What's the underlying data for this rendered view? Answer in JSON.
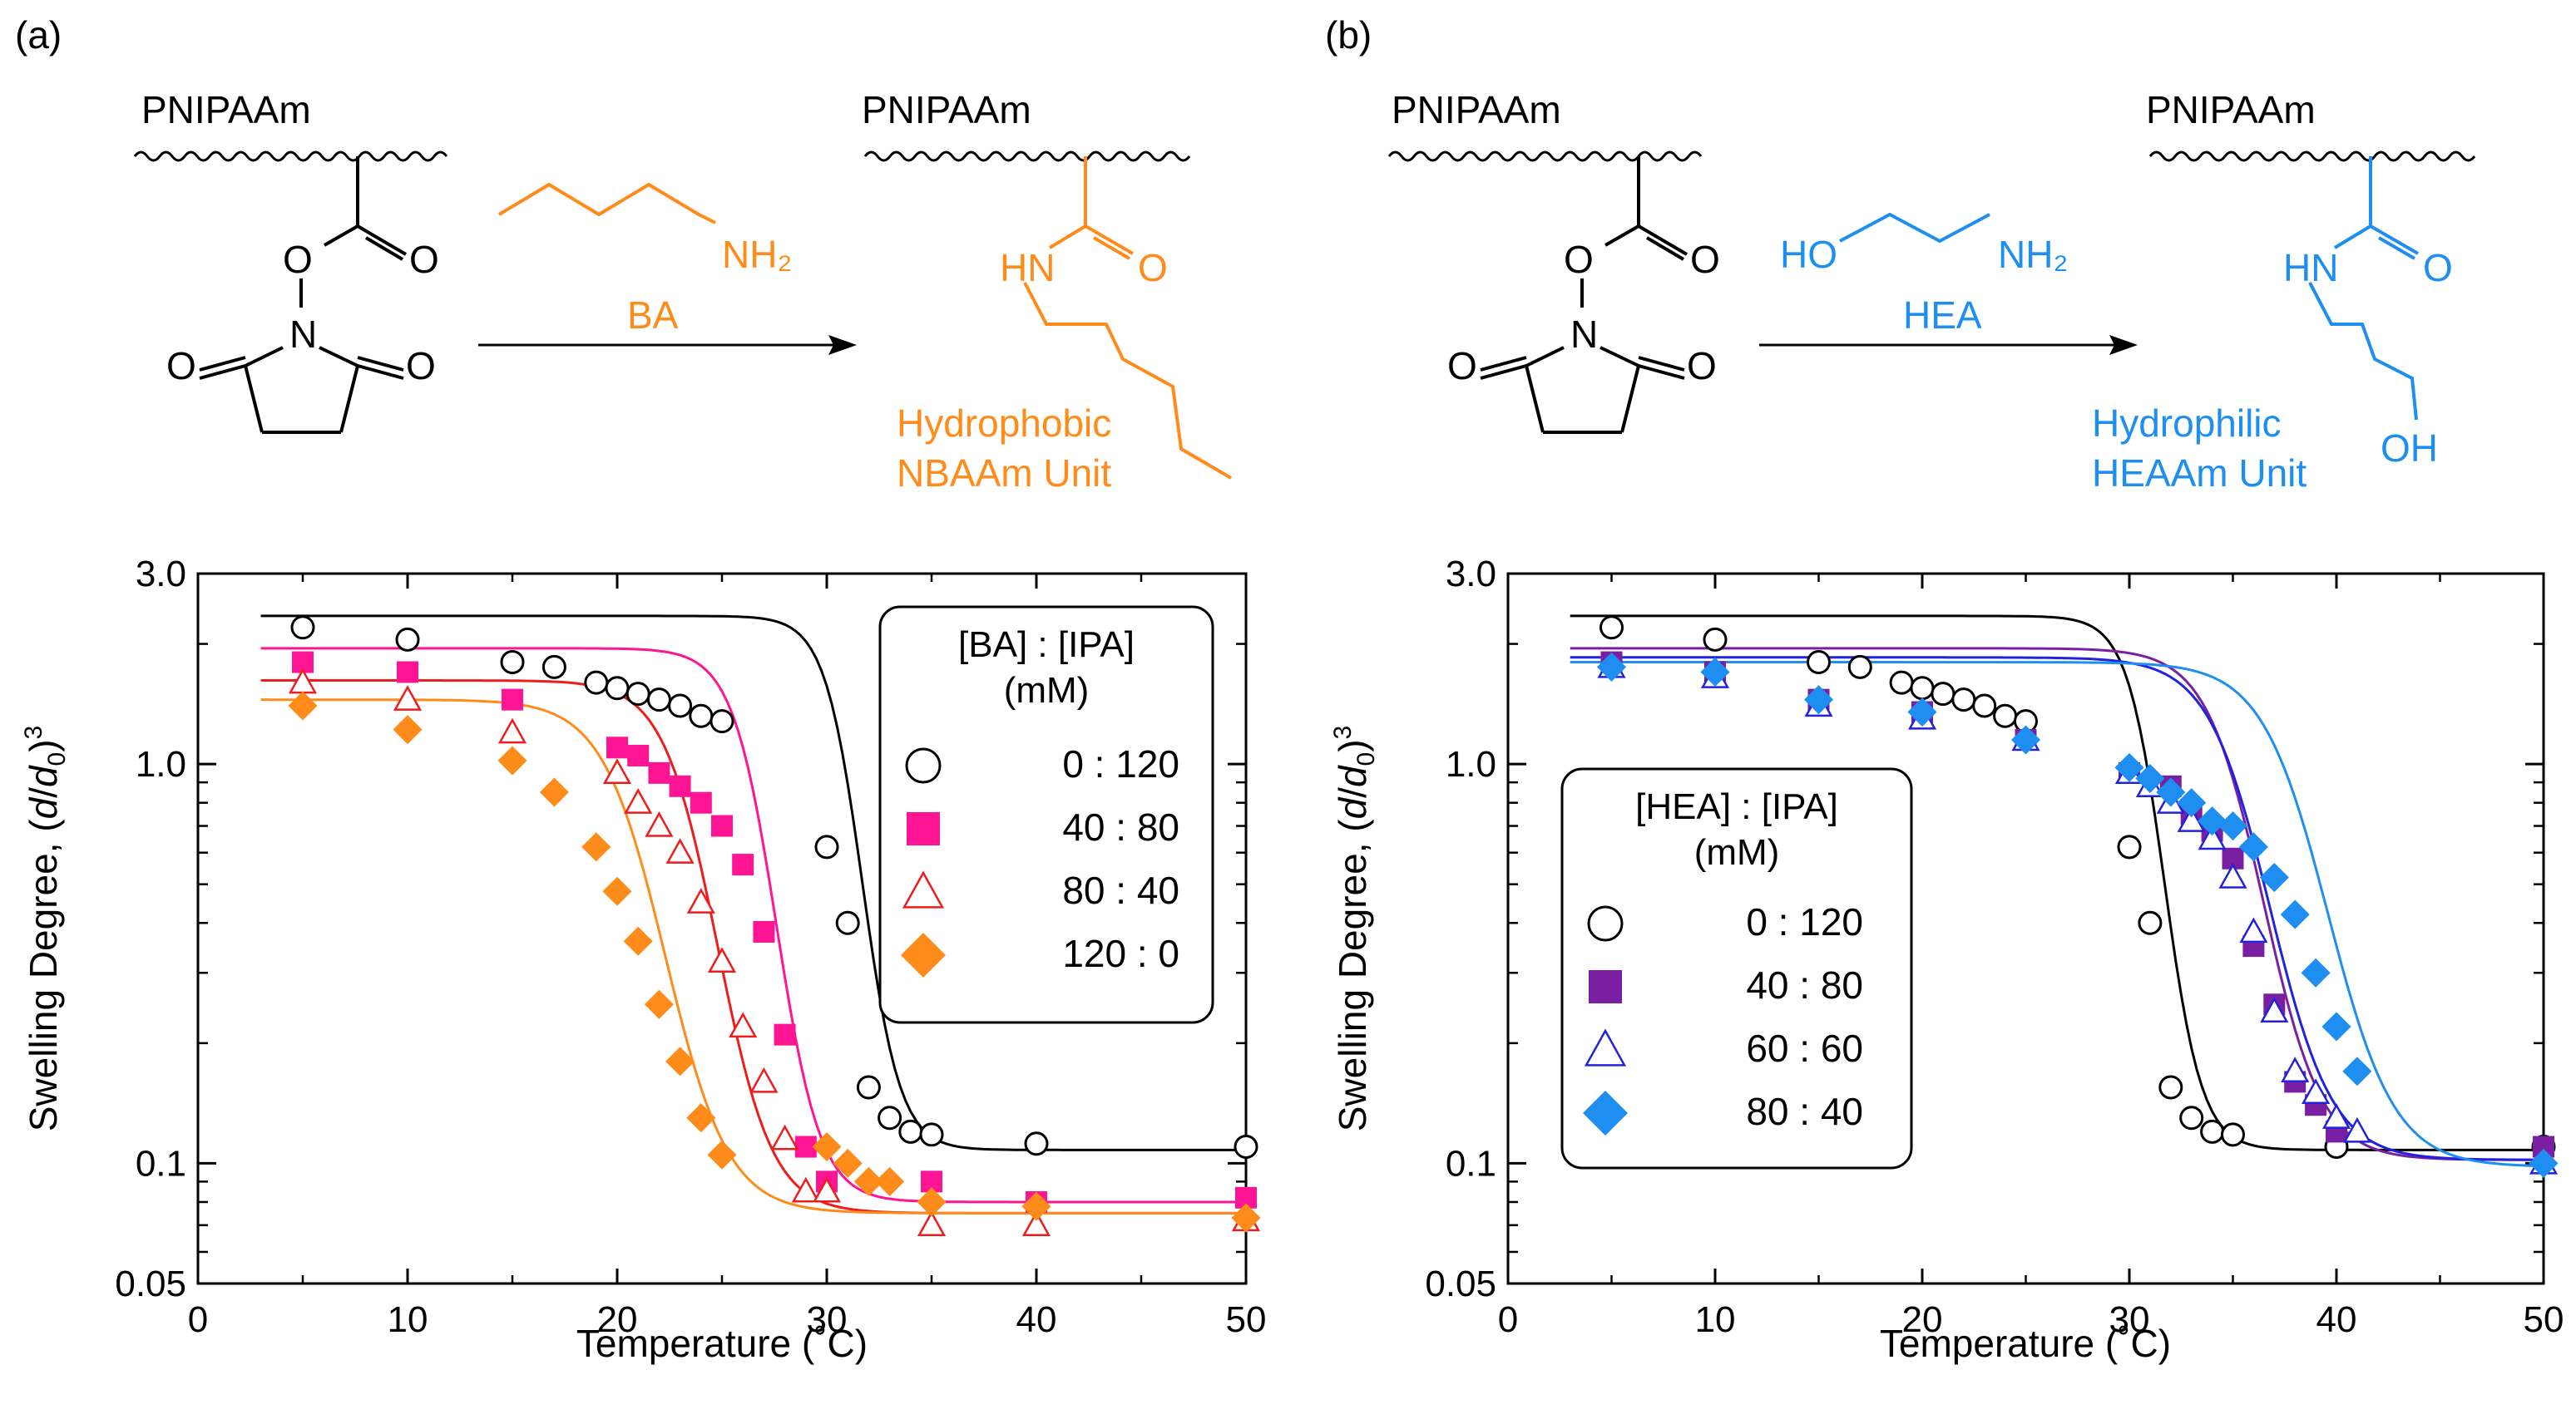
{
  "panels": [
    {
      "panel_label": "(a)",
      "scheme": {
        "polymer_label_left": "PNIPAAm",
        "polymer_label_right": "PNIPAAm",
        "amine_name": "BA",
        "amine_formula": "NH₂",
        "amide_hn": "HN",
        "amide_o": "O",
        "ester_o1": "O",
        "ester_o2": "O",
        "imide_n": "N",
        "imide_o_left": "O",
        "imide_o_right": "O",
        "unit_line1": "Hydrophobic",
        "unit_line2": "NBAAm Unit",
        "color": "#ff8c1a"
      }
    },
    {
      "panel_label": "(b)",
      "scheme": {
        "polymer_label_left": "PNIPAAm",
        "polymer_label_right": "PNIPAAm",
        "amine_name": "HEA",
        "amine_formula": "NH₂",
        "amine_ho": "HO",
        "amide_hn": "HN",
        "amide_o": "O",
        "amide_oh": "OH",
        "ester_o1": "O",
        "ester_o2": "O",
        "imide_n": "N",
        "imide_o_left": "O",
        "imide_o_right": "O",
        "unit_line1": "Hydrophilic",
        "unit_line2": "HEAAm Unit",
        "color": "#1e8ef0"
      }
    }
  ],
  "chart_data": [
    {
      "type": "scatter",
      "scale_y": "log",
      "xlabel": "Temperature (˚C)",
      "ylabel_main": "Swelling Degree, (",
      "ylabel_d": "d",
      "ylabel_slash": "/",
      "ylabel_d0": "d",
      "ylabel_sub": "0",
      "ylabel_close": ")",
      "ylabel_exp": "3",
      "xlim": [
        0,
        50
      ],
      "ylim": [
        0.05,
        3.0
      ],
      "xticks": [
        0,
        10,
        20,
        30,
        40,
        50
      ],
      "xtick_labels": [
        "0",
        "10",
        "20",
        "30",
        "40",
        "50"
      ],
      "yticks": [
        0.05,
        0.1,
        1.0,
        3.0
      ],
      "ytick_labels": [
        "0.05",
        "0.1",
        "1.0",
        "3.0"
      ],
      "legend": {
        "title_line1": "[BA] : [IPA]",
        "title_line2": "(mM)",
        "placement": "top-right"
      },
      "series": [
        {
          "name": "0 : 120",
          "marker": "circle-open",
          "color": "#000000",
          "fit": {
            "top": 2.35,
            "bottom": 0.108,
            "center": 31.7,
            "width": 0.9
          },
          "points": [
            [
              5,
              2.2
            ],
            [
              10,
              2.05
            ],
            [
              15,
              1.8
            ],
            [
              17,
              1.75
            ],
            [
              19,
              1.6
            ],
            [
              20,
              1.55
            ],
            [
              21,
              1.5
            ],
            [
              22,
              1.45
            ],
            [
              23,
              1.4
            ],
            [
              24,
              1.32
            ],
            [
              25,
              1.28
            ],
            [
              30,
              0.62
            ],
            [
              31,
              0.4
            ],
            [
              32,
              0.155
            ],
            [
              33,
              0.13
            ],
            [
              34,
              0.12
            ],
            [
              35,
              0.118
            ],
            [
              40,
              0.112
            ],
            [
              50,
              0.11
            ]
          ]
        },
        {
          "name": "40 : 80",
          "marker": "square-filled",
          "color": "#ff1493",
          "fit": {
            "top": 1.95,
            "bottom": 0.08,
            "center": 27.6,
            "width": 1.05
          },
          "points": [
            [
              5,
              1.8
            ],
            [
              10,
              1.7
            ],
            [
              15,
              1.45
            ],
            [
              20,
              1.1
            ],
            [
              21,
              1.05
            ],
            [
              22,
              0.95
            ],
            [
              23,
              0.88
            ],
            [
              24,
              0.8
            ],
            [
              25,
              0.7
            ],
            [
              26,
              0.56
            ],
            [
              27,
              0.38
            ],
            [
              28,
              0.21
            ],
            [
              29,
              0.11
            ],
            [
              30,
              0.09
            ],
            [
              35,
              0.09
            ],
            [
              40,
              0.08
            ],
            [
              50,
              0.082
            ]
          ]
        },
        {
          "name": "80 : 40",
          "marker": "triangle-open",
          "color": "#ee1c1c",
          "fit": {
            "top": 1.62,
            "bottom": 0.075,
            "center": 24.8,
            "width": 1.3
          },
          "points": [
            [
              5,
              1.6
            ],
            [
              10,
              1.45
            ],
            [
              15,
              1.2
            ],
            [
              20,
              0.95
            ],
            [
              21,
              0.8
            ],
            [
              22,
              0.7
            ],
            [
              23,
              0.6
            ],
            [
              24,
              0.45
            ],
            [
              25,
              0.32
            ],
            [
              26,
              0.22
            ],
            [
              27,
              0.16
            ],
            [
              28,
              0.115
            ],
            [
              29,
              0.085
            ],
            [
              30,
              0.085
            ],
            [
              35,
              0.07
            ],
            [
              40,
              0.07
            ],
            [
              50,
              0.072
            ]
          ]
        },
        {
          "name": "120 : 0",
          "marker": "diamond-filled",
          "color": "#ff8c1a",
          "fit": {
            "top": 1.45,
            "bottom": 0.075,
            "center": 22.3,
            "width": 1.5
          },
          "points": [
            [
              5,
              1.4
            ],
            [
              10,
              1.22
            ],
            [
              15,
              1.02
            ],
            [
              17,
              0.85
            ],
            [
              19,
              0.62
            ],
            [
              20,
              0.48
            ],
            [
              21,
              0.36
            ],
            [
              22,
              0.25
            ],
            [
              23,
              0.18
            ],
            [
              24,
              0.13
            ],
            [
              25,
              0.105
            ],
            [
              30,
              0.11
            ],
            [
              31,
              0.1
            ],
            [
              32,
              0.09
            ],
            [
              33,
              0.09
            ],
            [
              35,
              0.08
            ],
            [
              40,
              0.078
            ],
            [
              50,
              0.073
            ]
          ]
        }
      ]
    },
    {
      "type": "scatter",
      "scale_y": "log",
      "xlabel": "Temperature (˚C)",
      "ylabel_main": "Swelling Degree, (",
      "ylabel_d": "d",
      "ylabel_slash": "/",
      "ylabel_d0": "d",
      "ylabel_sub": "0",
      "ylabel_close": ")",
      "ylabel_exp": "3",
      "xlim": [
        0,
        50
      ],
      "ylim": [
        0.05,
        3.0
      ],
      "xticks": [
        0,
        10,
        20,
        30,
        40,
        50
      ],
      "xtick_labels": [
        "0",
        "10",
        "20",
        "30",
        "40",
        "50"
      ],
      "yticks": [
        0.05,
        0.1,
        1.0,
        3.0
      ],
      "ytick_labels": [
        "0.05",
        "0.1",
        "1.0",
        "3.0"
      ],
      "legend": {
        "title_line1": "[HEA] : [IPA]",
        "title_line2": "(mM)",
        "placement": "center-left"
      },
      "series": [
        {
          "name": "0 : 120",
          "marker": "circle-open",
          "color": "#000000",
          "fit": {
            "top": 2.35,
            "bottom": 0.108,
            "center": 31.7,
            "width": 0.9
          },
          "points": [
            [
              5,
              2.2
            ],
            [
              10,
              2.05
            ],
            [
              15,
              1.8
            ],
            [
              17,
              1.75
            ],
            [
              19,
              1.6
            ],
            [
              20,
              1.55
            ],
            [
              21,
              1.5
            ],
            [
              22,
              1.45
            ],
            [
              23,
              1.4
            ],
            [
              24,
              1.32
            ],
            [
              25,
              1.28
            ],
            [
              30,
              0.62
            ],
            [
              31,
              0.4
            ],
            [
              32,
              0.155
            ],
            [
              33,
              0.13
            ],
            [
              34,
              0.12
            ],
            [
              35,
              0.118
            ],
            [
              40,
              0.11
            ],
            [
              50,
              0.11
            ]
          ]
        },
        {
          "name": "40 : 80",
          "marker": "square-filled",
          "color": "#7b1fa2",
          "fit": {
            "top": 1.95,
            "bottom": 0.102,
            "center": 36.5,
            "width": 1.4
          },
          "points": [
            [
              5,
              1.8
            ],
            [
              10,
              1.7
            ],
            [
              15,
              1.45
            ],
            [
              20,
              1.35
            ],
            [
              25,
              1.15
            ],
            [
              30,
              0.95
            ],
            [
              32,
              0.88
            ],
            [
              33,
              0.75
            ],
            [
              34,
              0.68
            ],
            [
              35,
              0.58
            ],
            [
              36,
              0.35
            ],
            [
              37,
              0.25
            ],
            [
              38,
              0.16
            ],
            [
              39,
              0.14
            ],
            [
              40,
              0.12
            ],
            [
              50,
              0.11
            ]
          ]
        },
        {
          "name": "60 : 60",
          "marker": "triangle-open",
          "color": "#2222dd",
          "fit": {
            "top": 1.85,
            "bottom": 0.102,
            "center": 36.8,
            "width": 1.5
          },
          "points": [
            [
              5,
              1.75
            ],
            [
              10,
              1.65
            ],
            [
              15,
              1.4
            ],
            [
              20,
              1.3
            ],
            [
              25,
              1.15
            ],
            [
              30,
              0.95
            ],
            [
              31,
              0.88
            ],
            [
              32,
              0.8
            ],
            [
              33,
              0.72
            ],
            [
              34,
              0.65
            ],
            [
              35,
              0.52
            ],
            [
              36,
              0.38
            ],
            [
              37,
              0.24
            ],
            [
              38,
              0.17
            ],
            [
              39,
              0.15
            ],
            [
              40,
              0.13
            ],
            [
              41,
              0.12
            ],
            [
              50,
              0.1
            ]
          ]
        },
        {
          "name": "80 : 40",
          "marker": "diamond-filled",
          "color": "#1e8ef0",
          "fit": {
            "top": 1.8,
            "bottom": 0.098,
            "center": 39.6,
            "width": 1.6
          },
          "points": [
            [
              5,
              1.75
            ],
            [
              10,
              1.7
            ],
            [
              15,
              1.45
            ],
            [
              20,
              1.35
            ],
            [
              25,
              1.15
            ],
            [
              30,
              0.98
            ],
            [
              31,
              0.92
            ],
            [
              32,
              0.85
            ],
            [
              33,
              0.8
            ],
            [
              34,
              0.72
            ],
            [
              35,
              0.7
            ],
            [
              36,
              0.62
            ],
            [
              37,
              0.52
            ],
            [
              38,
              0.42
            ],
            [
              39,
              0.3
            ],
            [
              40,
              0.22
            ],
            [
              41,
              0.17
            ],
            [
              50,
              0.1
            ]
          ]
        }
      ]
    }
  ]
}
